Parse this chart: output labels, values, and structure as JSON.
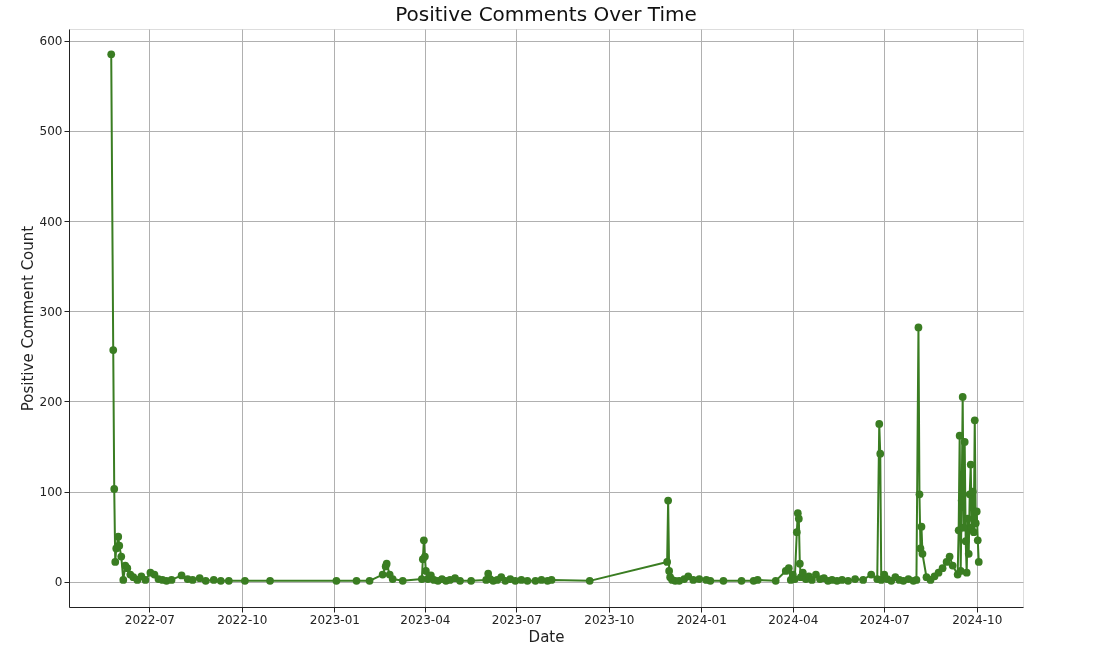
{
  "chart_data": {
    "type": "line",
    "title": "Positive Comments Over Time",
    "xlabel": "Date",
    "ylabel": "Positive Comment Count",
    "x": [
      "2022-05-24",
      "2022-05-26",
      "2022-05-27",
      "2022-05-28",
      "2022-05-29",
      "2022-05-31",
      "2022-06-01",
      "2022-06-03",
      "2022-06-05",
      "2022-06-07",
      "2022-06-09",
      "2022-06-12",
      "2022-06-15",
      "2022-06-19",
      "2022-06-23",
      "2022-06-27",
      "2022-07-02",
      "2022-07-06",
      "2022-07-10",
      "2022-07-14",
      "2022-07-18",
      "2022-07-23",
      "2022-08-02",
      "2022-08-08",
      "2022-08-13",
      "2022-08-20",
      "2022-08-26",
      "2022-09-03",
      "2022-09-10",
      "2022-09-18",
      "2022-10-04",
      "2022-10-29",
      "2023-01-03",
      "2023-01-23",
      "2023-02-05",
      "2023-02-18",
      "2023-02-21",
      "2023-02-22",
      "2023-02-25",
      "2023-02-28",
      "2023-03-10",
      "2023-03-29",
      "2023-03-30",
      "2023-03-31",
      "2023-04-01",
      "2023-04-02",
      "2023-04-04",
      "2023-04-07",
      "2023-04-10",
      "2023-04-14",
      "2023-04-18",
      "2023-04-22",
      "2023-04-26",
      "2023-05-01",
      "2023-05-06",
      "2023-05-17",
      "2023-06-01",
      "2023-06-03",
      "2023-06-05",
      "2023-06-08",
      "2023-06-12",
      "2023-06-16",
      "2023-06-20",
      "2023-06-25",
      "2023-06-30",
      "2023-07-06",
      "2023-07-12",
      "2023-07-20",
      "2023-07-26",
      "2023-08-01",
      "2023-08-05",
      "2023-09-12",
      "2023-11-28",
      "2023-11-29",
      "2023-11-30",
      "2023-12-01",
      "2023-12-03",
      "2023-12-06",
      "2023-12-10",
      "2023-12-15",
      "2023-12-19",
      "2023-12-24",
      "2023-12-30",
      "2024-01-06",
      "2024-01-10",
      "2024-01-23",
      "2024-02-10",
      "2024-02-22",
      "2024-02-26",
      "2024-03-15",
      "2024-03-25",
      "2024-03-28",
      "2024-03-30",
      "2024-04-01",
      "2024-04-03",
      "2024-04-05",
      "2024-04-06",
      "2024-04-07",
      "2024-04-08",
      "2024-04-09",
      "2024-04-11",
      "2024-04-14",
      "2024-04-17",
      "2024-04-20",
      "2024-04-24",
      "2024-04-28",
      "2024-05-02",
      "2024-05-06",
      "2024-05-10",
      "2024-05-15",
      "2024-05-20",
      "2024-05-26",
      "2024-06-02",
      "2024-06-10",
      "2024-06-18",
      "2024-06-24",
      "2024-06-26",
      "2024-06-27",
      "2024-06-28",
      "2024-07-01",
      "2024-07-04",
      "2024-07-08",
      "2024-07-12",
      "2024-07-16",
      "2024-07-20",
      "2024-07-25",
      "2024-07-30",
      "2024-08-02",
      "2024-08-04",
      "2024-08-05",
      "2024-08-06",
      "2024-08-07",
      "2024-08-08",
      "2024-08-12",
      "2024-08-16",
      "2024-08-20",
      "2024-08-24",
      "2024-08-28",
      "2024-09-01",
      "2024-09-04",
      "2024-09-07",
      "2024-09-12",
      "2024-09-13",
      "2024-09-14",
      "2024-09-15",
      "2024-09-16",
      "2024-09-17",
      "2024-09-18",
      "2024-09-19",
      "2024-09-20",
      "2024-09-21",
      "2024-09-22",
      "2024-09-23",
      "2024-09-24",
      "2024-09-25",
      "2024-09-26",
      "2024-09-27",
      "2024-09-28",
      "2024-09-29",
      "2024-09-30",
      "2024-10-01",
      "2024-10-02",
      "2024-10-03"
    ],
    "series": [
      {
        "color": "#3a7d22",
        "values": [
          585,
          257,
          103,
          22,
          37,
          50,
          40,
          28,
          2,
          18,
          15,
          8,
          5,
          2,
          6,
          2,
          10,
          8,
          3,
          2,
          1,
          2,
          7,
          3,
          2,
          4,
          1,
          2,
          1,
          1,
          1,
          1,
          1,
          1,
          1,
          8,
          17,
          20,
          8,
          3,
          1,
          3,
          25,
          46,
          28,
          12,
          3,
          7,
          2,
          1,
          3,
          1,
          2,
          4,
          1,
          1,
          2,
          9,
          3,
          1,
          2,
          5,
          1,
          3,
          1,
          2,
          1,
          1,
          2,
          1,
          2,
          1,
          22,
          90,
          12,
          5,
          2,
          1,
          1,
          3,
          6,
          2,
          3,
          2,
          1,
          1,
          1,
          1,
          2,
          1,
          12,
          15,
          2,
          8,
          3,
          55,
          76,
          70,
          20,
          5,
          10,
          3,
          6,
          2,
          8,
          3,
          4,
          1,
          2,
          1,
          2,
          1,
          3,
          2,
          8,
          3,
          175,
          142,
          2,
          8,
          3,
          1,
          5,
          2,
          1,
          3,
          1,
          2,
          282,
          97,
          37,
          61,
          31,
          5,
          2,
          6,
          10,
          15,
          22,
          28,
          18,
          8,
          57,
          162,
          12,
          90,
          205,
          60,
          155,
          45,
          10,
          70,
          31,
          97,
          130,
          60,
          100,
          55,
          179,
          65,
          78,
          46,
          22
        ]
      }
    ],
    "xlim": [
      "2022-04-12",
      "2024-11-16"
    ],
    "xticks": [
      {
        "value": "2022-07-01",
        "label": "2022-07"
      },
      {
        "value": "2022-10-01",
        "label": "2022-10"
      },
      {
        "value": "2023-01-01",
        "label": "2023-01"
      },
      {
        "value": "2023-04-01",
        "label": "2023-04"
      },
      {
        "value": "2023-07-01",
        "label": "2023-07"
      },
      {
        "value": "2023-10-01",
        "label": "2023-10"
      },
      {
        "value": "2024-01-01",
        "label": "2024-01"
      },
      {
        "value": "2024-04-01",
        "label": "2024-04"
      },
      {
        "value": "2024-07-01",
        "label": "2024-07"
      },
      {
        "value": "2024-10-01",
        "label": "2024-10"
      }
    ],
    "ylim": [
      -28,
      613
    ],
    "yticks": [
      0,
      100,
      200,
      300,
      400,
      500,
      600
    ],
    "grid": true,
    "marker": "circle",
    "line_style": "solid"
  }
}
